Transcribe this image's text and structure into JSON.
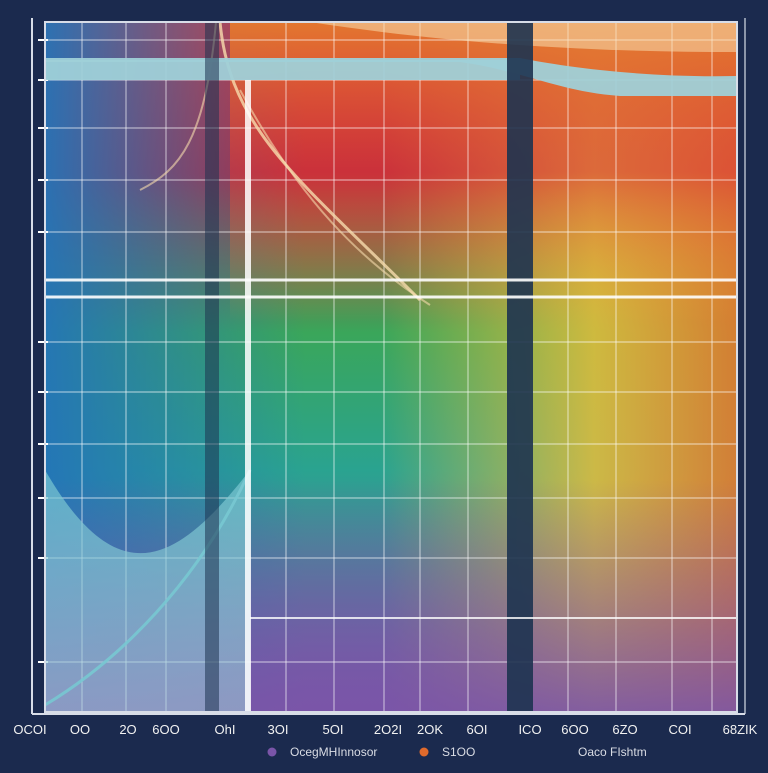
{
  "colors": {
    "background": "#1b2a4e",
    "frame": "#d8dde8",
    "grid": "#ffffff",
    "tick_label": "#f2f2f2",
    "legend_text": "#d9dce4",
    "gradient_red": "#d8383a",
    "gradient_orange": "#e47a2e",
    "gradient_yellow": "#e8bd3a",
    "gradient_green": "#3aa65a",
    "gradient_blue": "#2474b8",
    "gradient_purple": "#7a55a8",
    "band_teal": "#9fd0d8",
    "curve_cream": "#f7dcae",
    "curve_cyan": "#78c8d2",
    "dark_bar": "#1d3350"
  },
  "chart_data": {
    "type": "area",
    "title": "",
    "xlabel": "",
    "ylabel": "",
    "grid": true,
    "legend_position": "bottom",
    "x_tick_labels": [
      "OCOI",
      "OO",
      "2O",
      "6OO",
      "OhI",
      "3OI",
      "5OI",
      "2O2I",
      "2OK",
      "6OI",
      "ICO",
      "6OO",
      "6ZO",
      "COI",
      "68ZIK"
    ],
    "series": [
      {
        "name": "OcegMHInnosor",
        "color": "#7a55a8"
      },
      {
        "name": "S1OO",
        "color": "#e06a2c"
      },
      {
        "name": "Oaco FIshtm",
        "color": "#d8dde8"
      }
    ]
  }
}
